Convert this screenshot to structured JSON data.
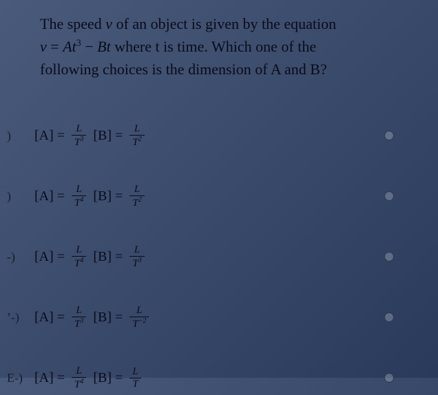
{
  "question": {
    "line1_part1": "The speed ",
    "var_v": "v",
    "line1_part2": " of an object is given by the equation",
    "eq_lhs": "v",
    "eq_op": " = ",
    "eq_term1_var": "At",
    "eq_term1_exp": "3",
    "eq_minus": " − ",
    "eq_term2": "Bt",
    "line2_part2": " where t is time. Which one of the",
    "line3": "following choices is the dimension of A and B?"
  },
  "choices": [
    {
      "marker": ")",
      "A_num": "L",
      "A_den_base": "T",
      "A_den_exp": "3",
      "B_num": "L",
      "B_den_base": "T",
      "B_den_exp": "2"
    },
    {
      "marker": ")",
      "A_num": "L",
      "A_den_base": "T",
      "A_den_exp": "4",
      "B_num": "L",
      "B_den_base": "T",
      "B_den_exp": "2"
    },
    {
      "marker": "-)",
      "A_num": "L",
      "A_den_base": "T",
      "A_den_exp": "4",
      "B_num": "L",
      "B_den_base": "T",
      "B_den_exp": "3"
    },
    {
      "marker": "’-)",
      "A_num": "L",
      "A_den_base": "T",
      "A_den_exp": "3",
      "B_num": "L",
      "B_den_base": "T",
      "B_den_exp": "−2"
    },
    {
      "marker": "E-)",
      "A_num": "L",
      "A_den_base": "T",
      "A_den_exp": "4",
      "B_num": "L",
      "B_den_base": "T",
      "B_den_exp": ""
    }
  ],
  "labels": {
    "A_open": "[A]",
    "B_open": "[B]",
    "equals": "="
  },
  "style": {
    "background_gradient": [
      "#4a5a7a",
      "#3a4a6a",
      "#2a3a5a"
    ],
    "text_color": "#0a0a1a",
    "radio_border": "#2a3a4a",
    "font_family": "Times New Roman",
    "question_fontsize": 22,
    "formula_fontsize": 20,
    "frac_fontsize": 15
  }
}
